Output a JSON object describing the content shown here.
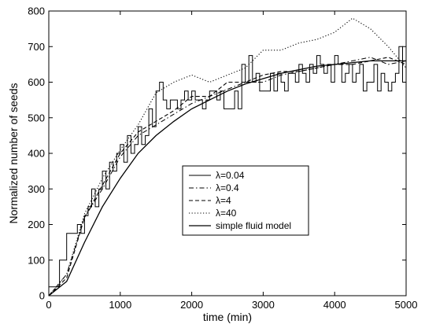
{
  "chart_data": {
    "type": "line",
    "title": "",
    "xlabel": "time (min)",
    "ylabel": "Normalized number of seeds",
    "xlim": [
      0,
      5000
    ],
    "ylim": [
      0,
      800
    ],
    "xticks": [
      "0",
      "1000",
      "2000",
      "3000",
      "4000",
      "5000"
    ],
    "yticks": [
      "0",
      "100",
      "200",
      "300",
      "400",
      "500",
      "600",
      "700",
      "800"
    ],
    "grid": false,
    "legend_position": "center",
    "series": [
      {
        "name": "λ=0.04",
        "style": "solid-step",
        "x": [
          0,
          150,
          200,
          250,
          300,
          350,
          400,
          450,
          500,
          550,
          600,
          650,
          700,
          750,
          800,
          850,
          900,
          950,
          1000,
          1050,
          1100,
          1150,
          1200,
          1250,
          1300,
          1350,
          1400,
          1450,
          1500,
          1550,
          1600,
          1650,
          1700,
          1750,
          1800,
          1850,
          1900,
          1950,
          2000,
          2050,
          2100,
          2150,
          2200,
          2250,
          2300,
          2350,
          2400,
          2450,
          2500,
          2550,
          2600,
          2650,
          2700,
          2750,
          2800,
          2850,
          2900,
          2950,
          3000,
          3050,
          3100,
          3150,
          3200,
          3250,
          3300,
          3350,
          3400,
          3450,
          3500,
          3550,
          3600,
          3650,
          3700,
          3750,
          3800,
          3850,
          3900,
          3950,
          4000,
          4050,
          4100,
          4150,
          4200,
          4250,
          4300,
          4350,
          4400,
          4450,
          4500,
          4550,
          4600,
          4650,
          4700,
          4750,
          4800,
          4850,
          4900,
          4950,
          5000
        ],
        "y": [
          25,
          100,
          100,
          175,
          175,
          175,
          200,
          175,
          225,
          250,
          300,
          250,
          300,
          350,
          300,
          375,
          350,
          400,
          425,
          375,
          450,
          400,
          425,
          475,
          425,
          450,
          525,
          475,
          575,
          600,
          550,
          525,
          550,
          550,
          525,
          550,
          575,
          550,
          575,
          550,
          550,
          525,
          550,
          575,
          575,
          550,
          575,
          525,
          525,
          525,
          575,
          525,
          650,
          600,
          675,
          600,
          625,
          575,
          575,
          575,
          625,
          575,
          625,
          600,
          575,
          625,
          625,
          600,
          650,
          625,
          600,
          650,
          625,
          675,
          650,
          625,
          650,
          600,
          675,
          650,
          600,
          625,
          650,
          600,
          625,
          650,
          575,
          600,
          600,
          650,
          575,
          625,
          600,
          575,
          600,
          625,
          700,
          600,
          550
        ]
      },
      {
        "name": "λ=0.4",
        "style": "dashdot",
        "x": [
          0,
          250,
          500,
          750,
          1000,
          1250,
          1500,
          1750,
          2000,
          2250,
          2500,
          2750,
          3000,
          3250,
          3500,
          3750,
          4000,
          4250,
          4500,
          4750,
          5000
        ],
        "y": [
          0,
          60,
          220,
          300,
          390,
          450,
          480,
          510,
          540,
          560,
          580,
          600,
          600,
          620,
          630,
          640,
          650,
          660,
          670,
          650,
          660
        ]
      },
      {
        "name": "λ=4",
        "style": "dashed",
        "x": [
          0,
          250,
          500,
          750,
          1000,
          1250,
          1500,
          1750,
          2000,
          2250,
          2500,
          2750,
          3000,
          3250,
          3500,
          3750,
          4000,
          4250,
          4500,
          4750,
          5000
        ],
        "y": [
          0,
          50,
          220,
          310,
          400,
          460,
          490,
          520,
          560,
          560,
          600,
          600,
          620,
          630,
          630,
          640,
          650,
          650,
          660,
          670,
          650
        ]
      },
      {
        "name": "λ=40",
        "style": "dotted",
        "x": [
          0,
          250,
          500,
          750,
          1000,
          1250,
          1500,
          1750,
          2000,
          2250,
          2500,
          2750,
          3000,
          3250,
          3500,
          3750,
          4000,
          4250,
          4500,
          4750,
          5000
        ],
        "y": [
          0,
          60,
          230,
          330,
          410,
          480,
          570,
          600,
          620,
          600,
          620,
          640,
          690,
          690,
          710,
          720,
          740,
          780,
          750,
          700,
          640
        ]
      },
      {
        "name": "simple fluid model",
        "style": "solid",
        "x": [
          0,
          250,
          500,
          750,
          1000,
          1250,
          1500,
          1750,
          2000,
          2250,
          2500,
          2750,
          3000,
          3250,
          3500,
          3750,
          4000,
          4250,
          4500,
          4750,
          5000
        ],
        "y": [
          0,
          40,
          150,
          250,
          330,
          400,
          450,
          490,
          525,
          550,
          575,
          595,
          610,
          625,
          635,
          645,
          650,
          655,
          660,
          660,
          660
        ]
      }
    ]
  }
}
